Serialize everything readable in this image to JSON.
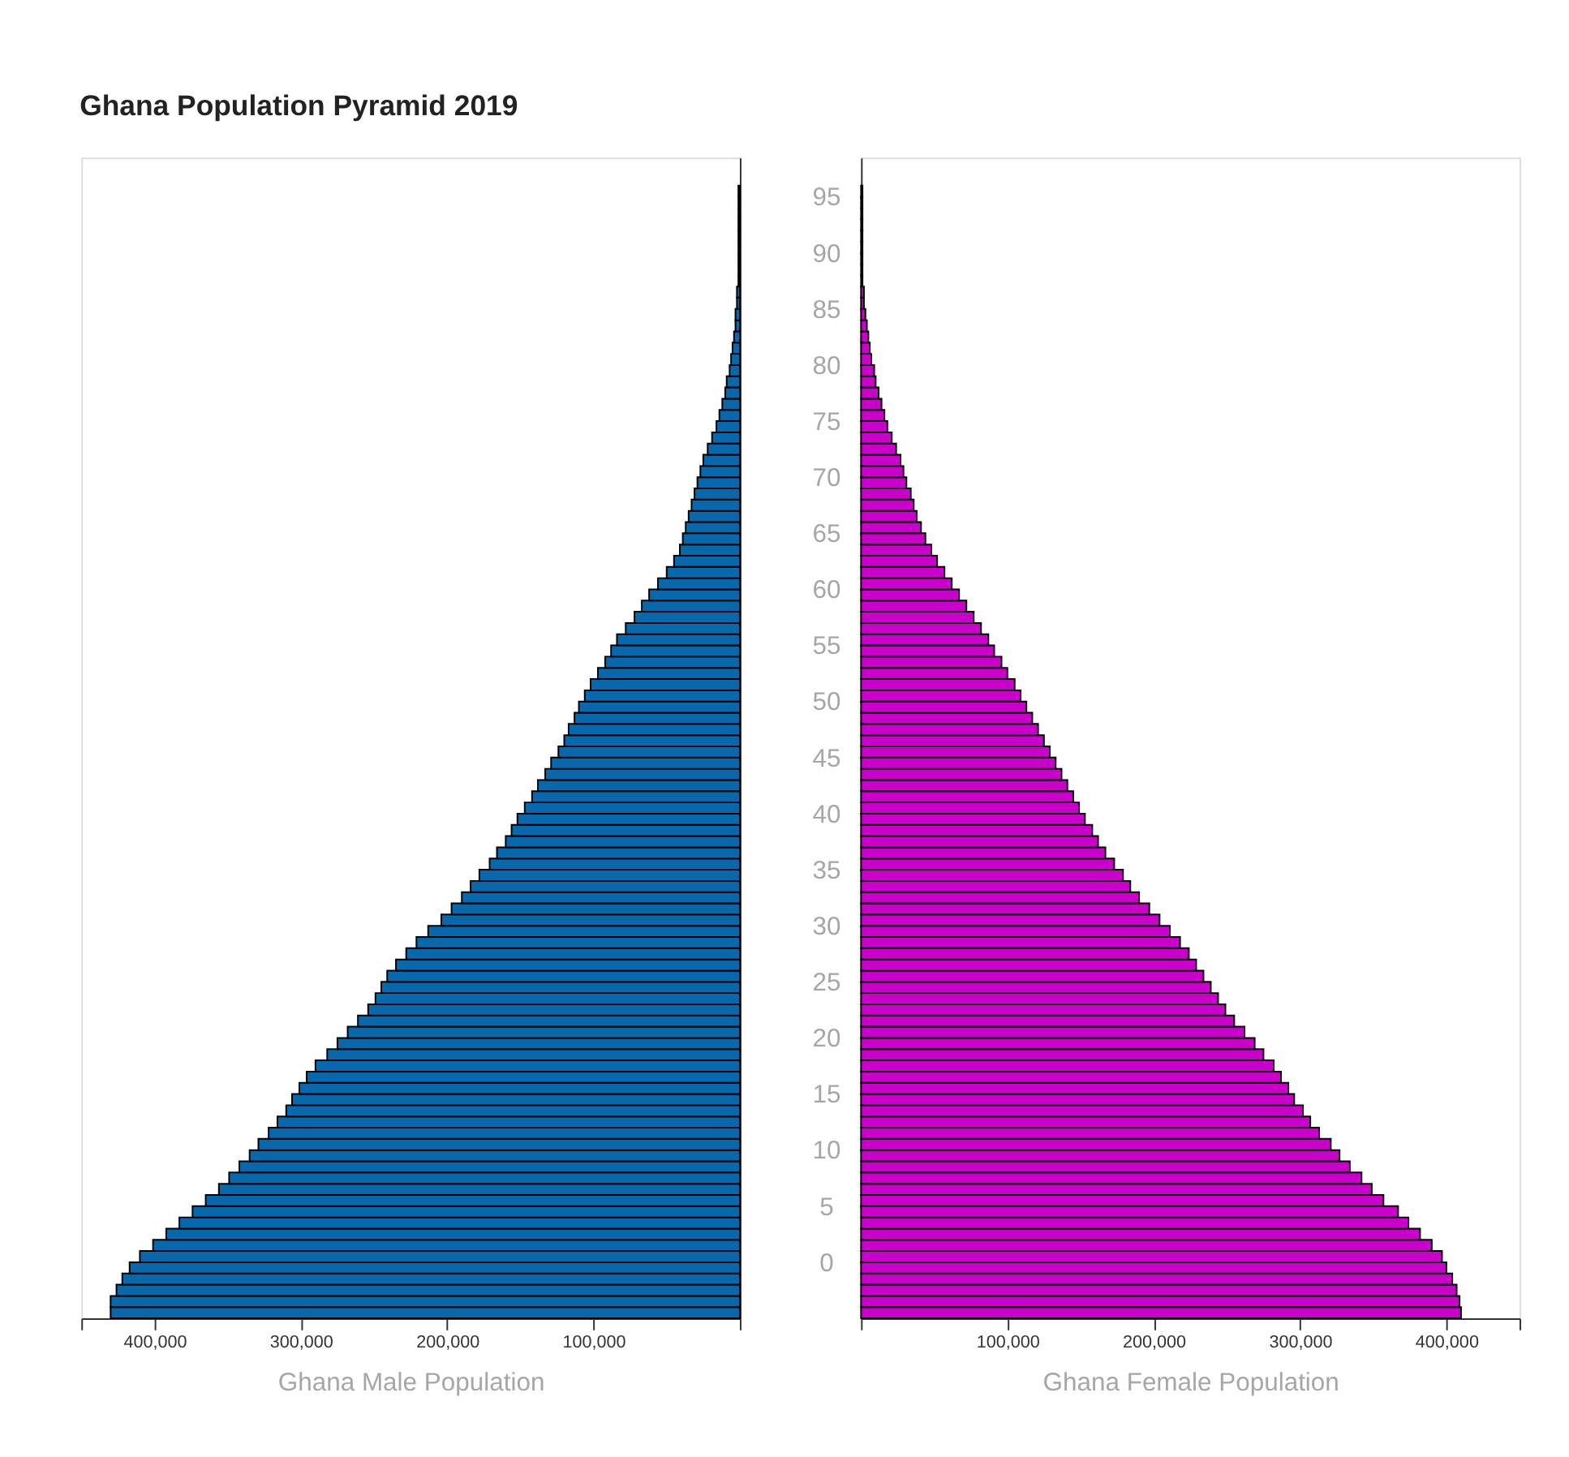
{
  "chart_data": [
    {
      "type": "bar",
      "orientation": "horizontal",
      "title": "Ghana Population Pyramid 2019",
      "xlabel": "Ghana Male Population",
      "color": "#0868ac",
      "tick_labels": "x",
      "x": [
        -4.5,
        -3.5,
        -2.5,
        -1.5,
        -0.5,
        0.5,
        1.5,
        2.5,
        3.5,
        4.5,
        5.5,
        6.5,
        7.5,
        8.5,
        9.5,
        10.5,
        11.5,
        12.5,
        13.5,
        14.5,
        15.5,
        16.5,
        17.5,
        18.5,
        19.5,
        20.5,
        21.5,
        22.5,
        23.5,
        24.5,
        25.5,
        26.5,
        27.5,
        28.5,
        29.5,
        30.5,
        31.5,
        32.5,
        33.5,
        34.5,
        35.5,
        36.5,
        37.5,
        38.5,
        39.5,
        40.5,
        41.5,
        42.5,
        43.5,
        44.5,
        45.5,
        46.5,
        47.5,
        48.5,
        49.5,
        50.5,
        51.5,
        52.5,
        53.5,
        54.5,
        55.5,
        56.5,
        57.5,
        58.5,
        59.5,
        60.5,
        61.5,
        62.5,
        63.5,
        64.5,
        65.5,
        66.5,
        67.5,
        68.5,
        69.5,
        70.5,
        71.5,
        72.5,
        73.5,
        74.5,
        75.5,
        76.5,
        77.5,
        78.5,
        79.5,
        80.5,
        81.5,
        82.5,
        83.5,
        84.5,
        85.5,
        86.5,
        87.5,
        88.5,
        89.5,
        90.5,
        91.5,
        92.5,
        93.5,
        94.5,
        95.5
      ],
      "values": [
        430000,
        430000,
        426000,
        422000,
        417000,
        410000,
        401000,
        392000,
        383000,
        374000,
        365000,
        356000,
        349000,
        342000,
        335000,
        329000,
        322000,
        316000,
        310000,
        306000,
        301000,
        296000,
        290000,
        282000,
        275000,
        268000,
        261000,
        254000,
        249000,
        245000,
        241000,
        235000,
        228000,
        221000,
        213000,
        204000,
        197000,
        190000,
        184000,
        178000,
        171000,
        166000,
        160000,
        156000,
        152000,
        147000,
        142000,
        138000,
        133000,
        129000,
        124000,
        120000,
        117000,
        113000,
        110000,
        106000,
        102000,
        97000,
        92000,
        88000,
        84000,
        78000,
        72000,
        67000,
        62000,
        56000,
        50000,
        45000,
        41000,
        39000,
        37000,
        35000,
        33000,
        31000,
        29000,
        27000,
        25000,
        22000,
        19000,
        16000,
        14000,
        12000,
        10000,
        9000,
        7000,
        6000,
        5000,
        4000,
        3000,
        3000,
        2000,
        2000,
        1000,
        1000,
        1000,
        1000,
        1000,
        1000,
        1000,
        1000,
        1000
      ],
      "xlim": [
        450000,
        0
      ],
      "xticks": [
        {
          "value": 450000,
          "label": null
        },
        {
          "value": 400000,
          "label": "400,000"
        },
        {
          "value": 300000,
          "label": "300,000"
        },
        {
          "value": 200000,
          "label": "200,000"
        },
        {
          "value": 100000,
          "label": "100,000"
        },
        {
          "value": 0,
          "label": null
        }
      ],
      "ylim": [
        -5,
        98.5
      ]
    },
    {
      "type": "bar",
      "orientation": "horizontal",
      "xlabel": "Ghana Female Population",
      "color": "#cc00cc",
      "x": [
        -4.5,
        -3.5,
        -2.5,
        -1.5,
        -0.5,
        0.5,
        1.5,
        2.5,
        3.5,
        4.5,
        5.5,
        6.5,
        7.5,
        8.5,
        9.5,
        10.5,
        11.5,
        12.5,
        13.5,
        14.5,
        15.5,
        16.5,
        17.5,
        18.5,
        19.5,
        20.5,
        21.5,
        22.5,
        23.5,
        24.5,
        25.5,
        26.5,
        27.5,
        28.5,
        29.5,
        30.5,
        31.5,
        32.5,
        33.5,
        34.5,
        35.5,
        36.5,
        37.5,
        38.5,
        39.5,
        40.5,
        41.5,
        42.5,
        43.5,
        44.5,
        45.5,
        46.5,
        47.5,
        48.5,
        49.5,
        50.5,
        51.5,
        52.5,
        53.5,
        54.5,
        55.5,
        56.5,
        57.5,
        58.5,
        59.5,
        60.5,
        61.5,
        62.5,
        63.5,
        64.5,
        65.5,
        66.5,
        67.5,
        68.5,
        69.5,
        70.5,
        71.5,
        72.5,
        73.5,
        74.5,
        75.5,
        76.5,
        77.5,
        78.5,
        79.5,
        80.5,
        81.5,
        82.5,
        83.5,
        84.5,
        85.5,
        86.5,
        87.5,
        88.5,
        89.5,
        90.5,
        91.5,
        92.5,
        93.5,
        94.5,
        95.5
      ],
      "values": [
        410000,
        409000,
        407000,
        404000,
        400000,
        397000,
        390000,
        382000,
        374000,
        367000,
        357000,
        349000,
        342000,
        334000,
        327000,
        321000,
        313000,
        307000,
        302000,
        296000,
        292000,
        287000,
        282000,
        275000,
        269000,
        262000,
        255000,
        249000,
        244000,
        239000,
        234000,
        229000,
        224000,
        218000,
        211000,
        204000,
        197000,
        190000,
        184000,
        179000,
        173000,
        167000,
        162000,
        158000,
        153000,
        149000,
        145000,
        141000,
        137000,
        133000,
        129000,
        125000,
        121000,
        117000,
        113000,
        109000,
        105000,
        100000,
        96000,
        91000,
        87000,
        82000,
        77000,
        72000,
        67000,
        62000,
        57000,
        52000,
        48000,
        44000,
        41000,
        38000,
        36000,
        34000,
        31000,
        29000,
        27000,
        24000,
        21000,
        18000,
        16000,
        14000,
        12000,
        10000,
        9000,
        7000,
        6000,
        5000,
        4000,
        3000,
        2000,
        2000,
        1000,
        1000,
        1000,
        1000,
        1000,
        1000,
        1000,
        1000,
        1000
      ],
      "xlim": [
        0,
        450000
      ],
      "xticks": [
        {
          "value": 0,
          "label": null
        },
        {
          "value": 100000,
          "label": "100,000"
        },
        {
          "value": 200000,
          "label": "200,000"
        },
        {
          "value": 300000,
          "label": "300,000"
        },
        {
          "value": 400000,
          "label": "400,000"
        },
        {
          "value": 450000,
          "label": null
        }
      ],
      "ylim": [
        -5,
        98.5
      ],
      "yticks": [
        0,
        5,
        10,
        15,
        20,
        25,
        30,
        35,
        40,
        45,
        50,
        55,
        60,
        65,
        70,
        75,
        80,
        85,
        90,
        95
      ]
    }
  ]
}
